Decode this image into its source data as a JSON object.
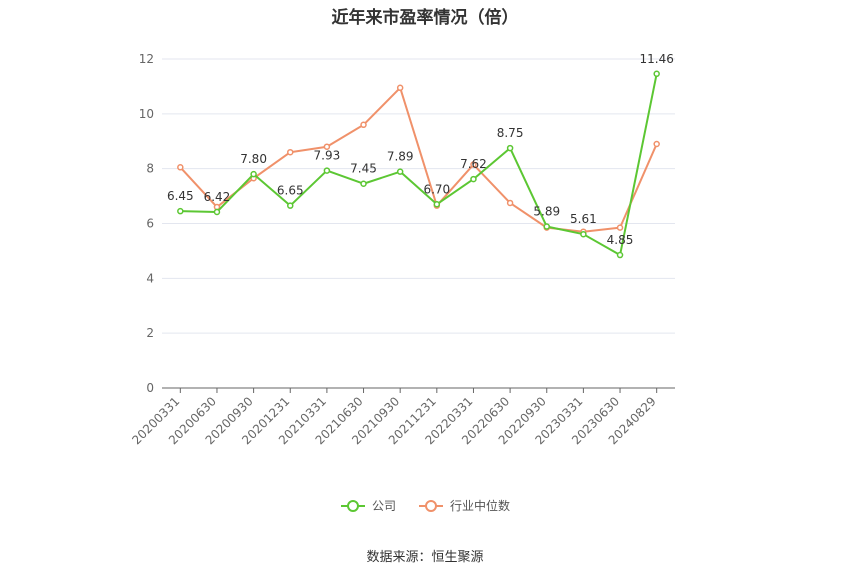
{
  "chart_data": {
    "type": "line",
    "title": "近年来市盈率情况（倍）",
    "categories": [
      "20200331",
      "20200630",
      "20200930",
      "20201231",
      "20210331",
      "20210630",
      "20210930",
      "20211231",
      "20220331",
      "20220630",
      "20220930",
      "20230331",
      "20230630",
      "20240829"
    ],
    "series": [
      {
        "name": "公司",
        "color": "#5cc733",
        "values": [
          6.45,
          6.42,
          7.8,
          6.65,
          7.93,
          7.45,
          7.89,
          6.7,
          7.62,
          8.75,
          5.89,
          5.61,
          4.85,
          11.46
        ],
        "labels": true
      },
      {
        "name": "行业中位数",
        "color": "#f0916a",
        "values": [
          8.05,
          6.6,
          7.65,
          8.6,
          8.8,
          9.6,
          10.95,
          6.65,
          8.15,
          6.75,
          5.85,
          5.7,
          5.85,
          8.9
        ],
        "labels": false
      }
    ],
    "ylim": [
      0,
      12
    ],
    "yticks": [
      0,
      2,
      4,
      6,
      8,
      10,
      12
    ],
    "grid": true,
    "legend_position": "bottom"
  },
  "source": "数据来源：恒生聚源"
}
